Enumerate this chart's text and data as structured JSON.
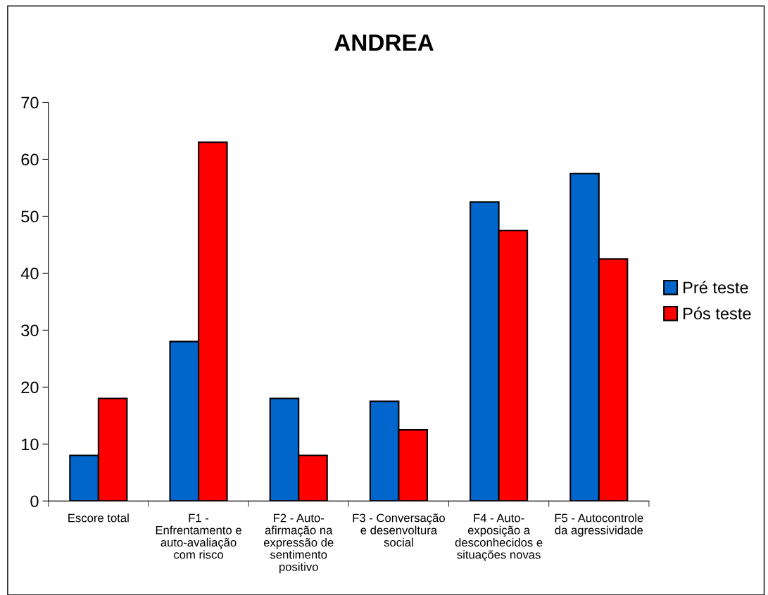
{
  "chart_data": {
    "type": "bar",
    "title": "ANDREA",
    "categories": [
      "Escore total",
      "F1 - Enfrentamento e auto-avaliação com risco",
      "F2 - Auto-afirmação na expressão de sentimento positivo",
      "F3 - Conversação e desenvoltura social",
      "F4 - Auto-exposição a desconhecidos e situações novas",
      "F5 - Autocontrole da agressividade"
    ],
    "series": [
      {
        "name": "Pré teste",
        "color": "#0066cc",
        "values": [
          8,
          28,
          18,
          17.5,
          52.5,
          57.5
        ]
      },
      {
        "name": "Pós teste",
        "color": "#ff0000",
        "values": [
          18,
          63,
          8,
          12.5,
          47.5,
          42.5
        ]
      }
    ],
    "ylim": [
      0,
      70
    ],
    "yticks": [
      0,
      10,
      20,
      30,
      40,
      50,
      60,
      70
    ],
    "grid": false,
    "legend": "right"
  }
}
